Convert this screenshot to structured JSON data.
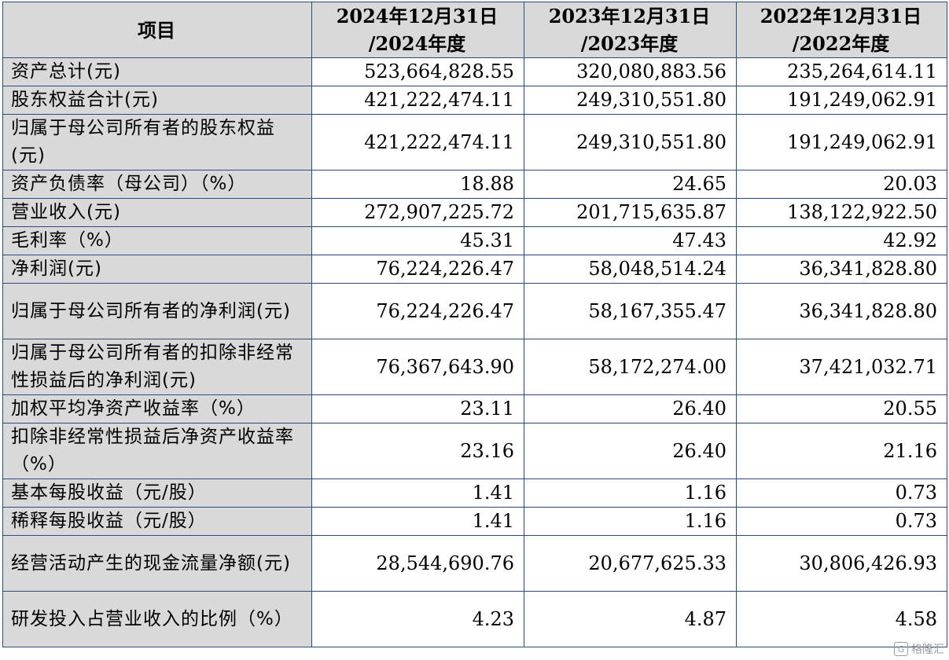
{
  "header": {
    "item": "项目",
    "col1_line1": "2024年12月31日",
    "col1_line2": "/2024年度",
    "col2_line1": "2023年12月31日",
    "col2_line2": "/2023年度",
    "col3_line1": "2022年12月31日",
    "col3_line2": "/2022年度"
  },
  "rows": [
    {
      "label": "资产总计(元)",
      "v2024": "523,664,828.55",
      "v2023": "320,080,883.56",
      "v2022": "235,264,614.11"
    },
    {
      "label": "股东权益合计(元)",
      "v2024": "421,222,474.11",
      "v2023": "249,310,551.80",
      "v2022": "191,249,062.91"
    },
    {
      "label": "归属于母公司所有者的股东权益(元)",
      "v2024": "421,222,474.11",
      "v2023": "249,310,551.80",
      "v2022": "191,249,062.91"
    },
    {
      "label": "资产负债率（母公司）（%）",
      "v2024": "18.88",
      "v2023": "24.65",
      "v2022": "20.03"
    },
    {
      "label": "营业收入(元)",
      "v2024": "272,907,225.72",
      "v2023": "201,715,635.87",
      "v2022": "138,122,922.50"
    },
    {
      "label": "毛利率（%）",
      "v2024": "45.31",
      "v2023": "47.43",
      "v2022": "42.92"
    },
    {
      "label": "净利润(元)",
      "v2024": "76,224,226.47",
      "v2023": "58,048,514.24",
      "v2022": "36,341,828.80"
    },
    {
      "label": "归属于母公司所有者的净利润(元)",
      "v2024": "76,224,226.47",
      "v2023": "58,167,355.47",
      "v2022": "36,341,828.80"
    },
    {
      "label": "归属于母公司所有者的扣除非经常性损益后的净利润(元)",
      "v2024": "76,367,643.90",
      "v2023": "58,172,274.00",
      "v2022": "37,421,032.71"
    },
    {
      "label": "加权平均净资产收益率（%）",
      "v2024": "23.11",
      "v2023": "26.40",
      "v2022": "20.55"
    },
    {
      "label": "扣除非经常性损益后净资产收益率（%）",
      "v2024": "23.16",
      "v2023": "26.40",
      "v2022": "21.16"
    },
    {
      "label": "基本每股收益（元/股）",
      "v2024": "1.41",
      "v2023": "1.16",
      "v2022": "0.73"
    },
    {
      "label": "稀释每股收益（元/股）",
      "v2024": "1.41",
      "v2023": "1.16",
      "v2022": "0.73"
    },
    {
      "label": "经营活动产生的现金流量净额(元)",
      "v2024": "28,544,690.76",
      "v2023": "20,677,625.33",
      "v2022": "30,806,426.93"
    },
    {
      "label": "研发投入占营业收入的比例（%）",
      "v2024": "4.23",
      "v2023": "4.87",
      "v2022": "4.58"
    }
  ],
  "watermark": "格隆汇"
}
